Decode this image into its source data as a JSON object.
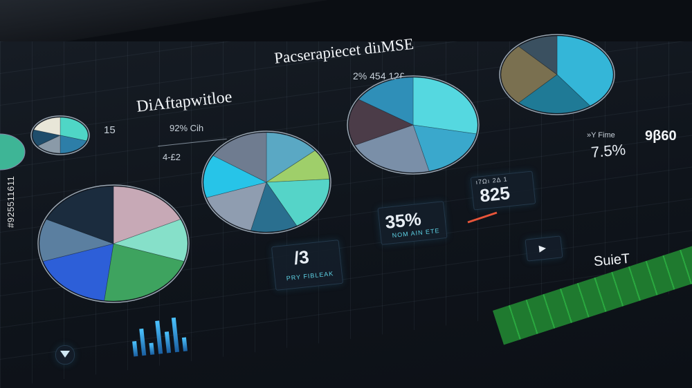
{
  "watermark_side": "#925511611",
  "header": {
    "title": "DiAftapwitloe",
    "subtitle": "Pacserapiecet diıMSE",
    "stat_top": "2% 454 12£",
    "left_label_1": "92% Cih",
    "left_label_2": "4-£2",
    "num_15": "15"
  },
  "kpis": {
    "k1_value": "/3",
    "k1_caption": "PRY FIBLEAK",
    "k2_value": "35%",
    "k2_caption": "NOM AIN ETE",
    "k3_value": "825",
    "k3_caption": "ı7Ωı 2Δ 1",
    "k4_label": "»Y Fime",
    "k4_value": "7.5%",
    "k5_value": "9β60",
    "suiet": "SuieT"
  },
  "pies": [
    {
      "name": "pie-small-left",
      "values": [
        30,
        20,
        15,
        15,
        20
      ],
      "colors": [
        "#4fd6c6",
        "#2d7ea8",
        "#8a9aa8",
        "#1f4d6b",
        "#e8e6d8"
      ]
    },
    {
      "name": "pie-large-left",
      "values": [
        18,
        12,
        22,
        18,
        12,
        18
      ],
      "colors": [
        "#c7a9b6",
        "#86e0c9",
        "#3ea35f",
        "#2d5fd8",
        "#5b7fa0",
        "#1b2c3e"
      ]
    },
    {
      "name": "pie-center",
      "values": [
        14,
        10,
        18,
        12,
        16,
        14,
        16
      ],
      "colors": [
        "#5aa8c4",
        "#9fcf6a",
        "#55d4c8",
        "#2a6f8f",
        "#8f9db0",
        "#27c4e8",
        "#6f7c90"
      ]
    },
    {
      "name": "pie-mid-right",
      "values": [
        28,
        18,
        22,
        16,
        16
      ],
      "colors": [
        "#55d8e0",
        "#3aa8cc",
        "#7a8fa8",
        "#4b3c48",
        "#2f8fb8"
      ]
    },
    {
      "name": "pie-top-right",
      "values": [
        40,
        22,
        26,
        12
      ],
      "colors": [
        "#34b6d8",
        "#1f7a96",
        "#7a7050",
        "#3a5060"
      ]
    }
  ],
  "bar_values": [
    0.4,
    0.7,
    0.3,
    0.85,
    0.55,
    0.9,
    0.35
  ]
}
